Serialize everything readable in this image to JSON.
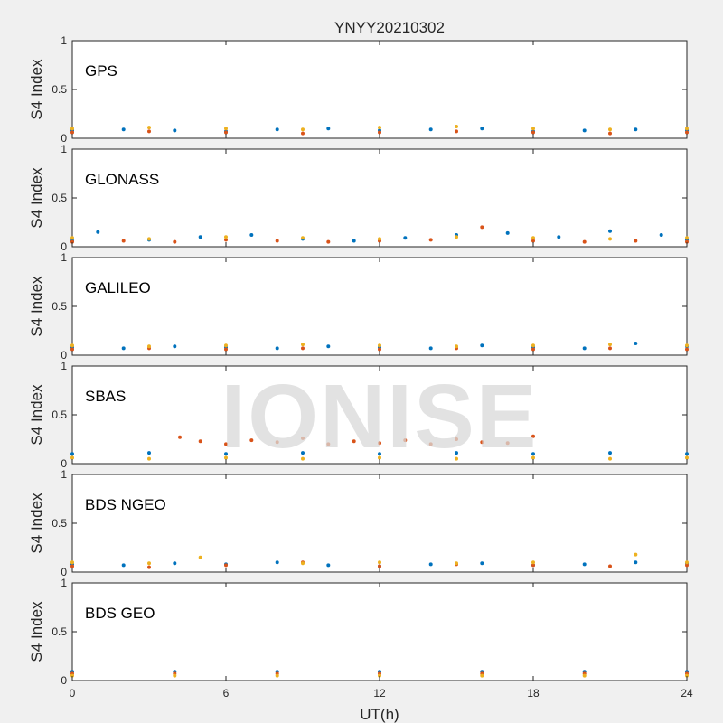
{
  "chart_data": {
    "type": "scatter",
    "title": "YNYY20210302",
    "watermark": "IONISE",
    "xlabel": "UT(h)",
    "xlim": [
      0,
      24
    ],
    "xticks": [
      0,
      6,
      12,
      18,
      24
    ],
    "ylim": [
      0,
      1
    ],
    "yticks": [
      0,
      0.5,
      1
    ],
    "ytick_labels": [
      "0",
      "0.5",
      "1"
    ],
    "grid": false,
    "series_colors": [
      "#0072BD",
      "#D95319",
      "#EDB120",
      "#7E2F8E",
      "#77AC30",
      "#4DBEEE",
      "#A2142F"
    ],
    "panels": [
      {
        "label": "GPS",
        "ylabel": "S4 Index",
        "series": [
          {
            "x": [
              0,
              2,
              4,
              6,
              8,
              10,
              12,
              14,
              16,
              18,
              20,
              22,
              24
            ],
            "y": [
              0.08,
              0.09,
              0.08,
              0.07,
              0.09,
              0.1,
              0.08,
              0.09,
              0.1,
              0.07,
              0.08,
              0.09,
              0.08
            ]
          },
          {
            "x": [
              0,
              3,
              6,
              9,
              12,
              15,
              18,
              21,
              24
            ],
            "y": [
              0.06,
              0.07,
              0.06,
              0.05,
              0.06,
              0.07,
              0.06,
              0.05,
              0.06
            ]
          },
          {
            "x": [
              0,
              3,
              6,
              9,
              12,
              15,
              18,
              21,
              24
            ],
            "y": [
              0.1,
              0.11,
              0.1,
              0.09,
              0.11,
              0.12,
              0.1,
              0.09,
              0.1
            ]
          }
        ]
      },
      {
        "label": "GLONASS",
        "ylabel": "S4 Index",
        "series": [
          {
            "x": [
              0,
              1,
              3,
              5,
              7,
              9,
              11,
              13,
              15,
              17,
              19,
              21,
              23,
              24
            ],
            "y": [
              0.06,
              0.15,
              0.07,
              0.1,
              0.12,
              0.08,
              0.06,
              0.09,
              0.12,
              0.14,
              0.1,
              0.16,
              0.12,
              0.07
            ]
          },
          {
            "x": [
              0,
              2,
              4,
              6,
              8,
              10,
              12,
              14,
              16,
              18,
              20,
              22,
              24
            ],
            "y": [
              0.05,
              0.06,
              0.05,
              0.07,
              0.06,
              0.05,
              0.06,
              0.07,
              0.2,
              0.06,
              0.05,
              0.06,
              0.05
            ]
          },
          {
            "x": [
              0,
              3,
              6,
              9,
              12,
              15,
              18,
              21,
              24
            ],
            "y": [
              0.09,
              0.08,
              0.1,
              0.09,
              0.08,
              0.1,
              0.09,
              0.08,
              0.09
            ]
          }
        ]
      },
      {
        "label": "GALILEO",
        "ylabel": "S4 Index",
        "series": [
          {
            "x": [
              0,
              2,
              4,
              6,
              8,
              10,
              12,
              14,
              16,
              18,
              20,
              22,
              24
            ],
            "y": [
              0.08,
              0.07,
              0.09,
              0.08,
              0.07,
              0.09,
              0.08,
              0.07,
              0.1,
              0.08,
              0.07,
              0.12,
              0.09
            ]
          },
          {
            "x": [
              0,
              3,
              6,
              9,
              12,
              15,
              18,
              21,
              24
            ],
            "y": [
              0.06,
              0.07,
              0.06,
              0.07,
              0.06,
              0.07,
              0.06,
              0.07,
              0.06
            ]
          },
          {
            "x": [
              0,
              3,
              6,
              9,
              12,
              15,
              18,
              21,
              24
            ],
            "y": [
              0.1,
              0.09,
              0.1,
              0.11,
              0.1,
              0.09,
              0.1,
              0.11,
              0.1
            ]
          }
        ]
      },
      {
        "label": "SBAS",
        "ylabel": "S4 Index",
        "series": [
          {
            "x": [
              0,
              3,
              6,
              9,
              12,
              15,
              18,
              21,
              24
            ],
            "y": [
              0.1,
              0.11,
              0.1,
              0.11,
              0.1,
              0.11,
              0.1,
              0.11,
              0.1
            ]
          },
          {
            "x": [
              4.2,
              5,
              6,
              7,
              8,
              9,
              10,
              11,
              12,
              13,
              14,
              15,
              16,
              17,
              18
            ],
            "y": [
              0.27,
              0.23,
              0.2,
              0.24,
              0.22,
              0.26,
              0.2,
              0.23,
              0.21,
              0.24,
              0.2,
              0.25,
              0.22,
              0.21,
              0.28
            ]
          },
          {
            "x": [
              0,
              3,
              6,
              9,
              12,
              15,
              18,
              21,
              24
            ],
            "y": [
              0.06,
              0.05,
              0.06,
              0.05,
              0.06,
              0.05,
              0.06,
              0.05,
              0.06
            ]
          }
        ]
      },
      {
        "label": "BDS NGEO",
        "ylabel": "S4 Index",
        "series": [
          {
            "x": [
              0,
              2,
              4,
              6,
              8,
              10,
              12,
              14,
              16,
              18,
              20,
              22,
              24
            ],
            "y": [
              0.08,
              0.07,
              0.09,
              0.08,
              0.1,
              0.07,
              0.06,
              0.08,
              0.09,
              0.07,
              0.08,
              0.1,
              0.09
            ]
          },
          {
            "x": [
              0,
              3,
              6,
              9,
              12,
              15,
              18,
              21,
              24
            ],
            "y": [
              0.06,
              0.05,
              0.07,
              0.1,
              0.06,
              0.08,
              0.07,
              0.06,
              0.07
            ]
          },
          {
            "x": [
              0,
              3,
              5,
              9,
              12,
              15,
              18,
              22,
              24
            ],
            "y": [
              0.1,
              0.09,
              0.15,
              0.09,
              0.1,
              0.09,
              0.1,
              0.18,
              0.1
            ]
          }
        ]
      },
      {
        "label": "BDS GEO",
        "ylabel": "S4 Index",
        "series": [
          {
            "x": [
              0,
              4,
              8,
              12,
              16,
              20,
              24
            ],
            "y": [
              0.09,
              0.09,
              0.09,
              0.09,
              0.09,
              0.09,
              0.09
            ]
          },
          {
            "x": [
              0,
              4,
              8,
              12,
              16,
              20,
              24
            ],
            "y": [
              0.07,
              0.07,
              0.07,
              0.07,
              0.07,
              0.07,
              0.07
            ]
          },
          {
            "x": [
              0,
              4,
              8,
              12,
              16,
              20,
              24
            ],
            "y": [
              0.05,
              0.05,
              0.05,
              0.05,
              0.05,
              0.05,
              0.05
            ]
          }
        ]
      }
    ]
  }
}
